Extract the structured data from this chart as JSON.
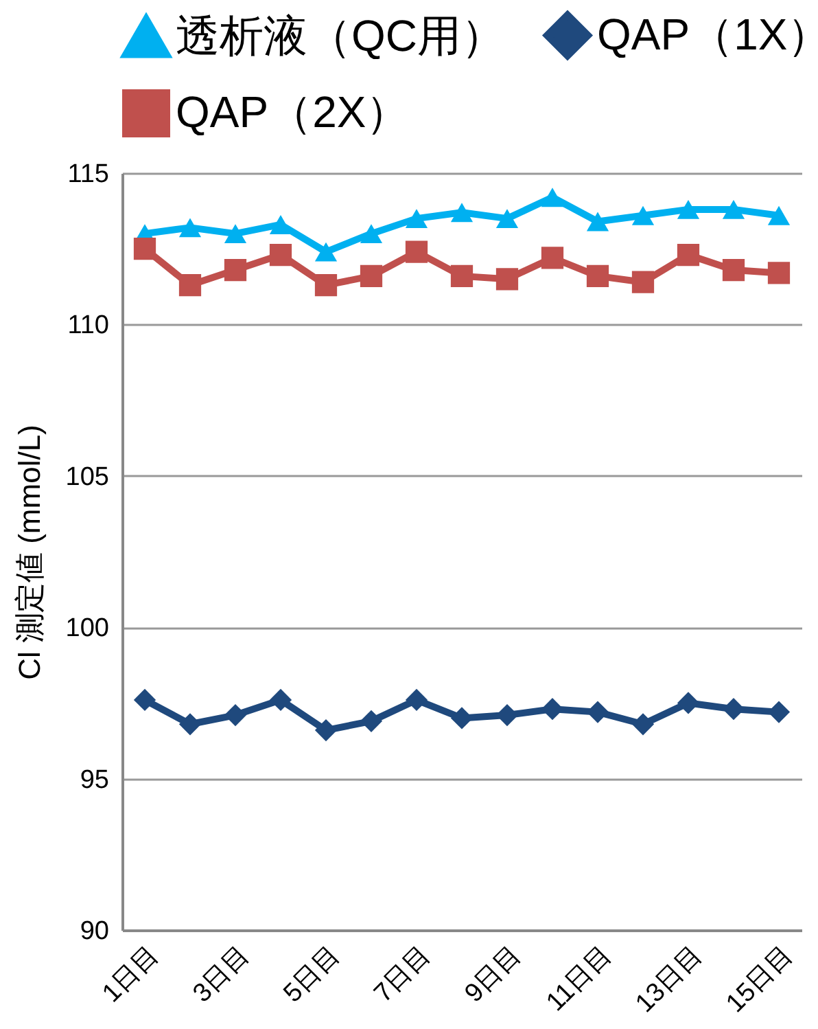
{
  "chart_data": {
    "type": "line",
    "ylabel": "Cl 測定値 (mmol/L)",
    "categories": [
      "1日目",
      null,
      "3日目",
      null,
      "5日目",
      null,
      "7日目",
      null,
      "9日目",
      null,
      "11日目",
      null,
      "13日目",
      null,
      "15日目"
    ],
    "series": [
      {
        "name": "透析液（QC用）",
        "color": "#00b0f0",
        "marker": "triangle",
        "values": [
          113.0,
          113.2,
          113.0,
          113.3,
          112.4,
          113.0,
          113.5,
          113.7,
          113.5,
          114.2,
          113.4,
          113.6,
          113.8,
          113.8,
          113.6
        ]
      },
      {
        "name": "QAP（1X）",
        "color": "#1f497d",
        "marker": "diamond",
        "values": [
          97.6,
          96.8,
          97.1,
          97.6,
          96.6,
          96.9,
          97.6,
          97.0,
          97.1,
          97.3,
          97.2,
          96.8,
          97.5,
          97.3,
          97.2
        ]
      },
      {
        "name": "QAP（2X）",
        "color": "#c0504d",
        "marker": "square",
        "values": [
          112.5,
          111.3,
          111.8,
          112.3,
          111.3,
          111.6,
          112.4,
          111.6,
          111.5,
          112.2,
          111.6,
          111.4,
          112.3,
          111.8,
          111.7
        ]
      }
    ],
    "ylim": [
      90,
      115
    ],
    "yticks": [
      90,
      95,
      100,
      105,
      110,
      115
    ],
    "grid": "y",
    "legend": "top"
  }
}
